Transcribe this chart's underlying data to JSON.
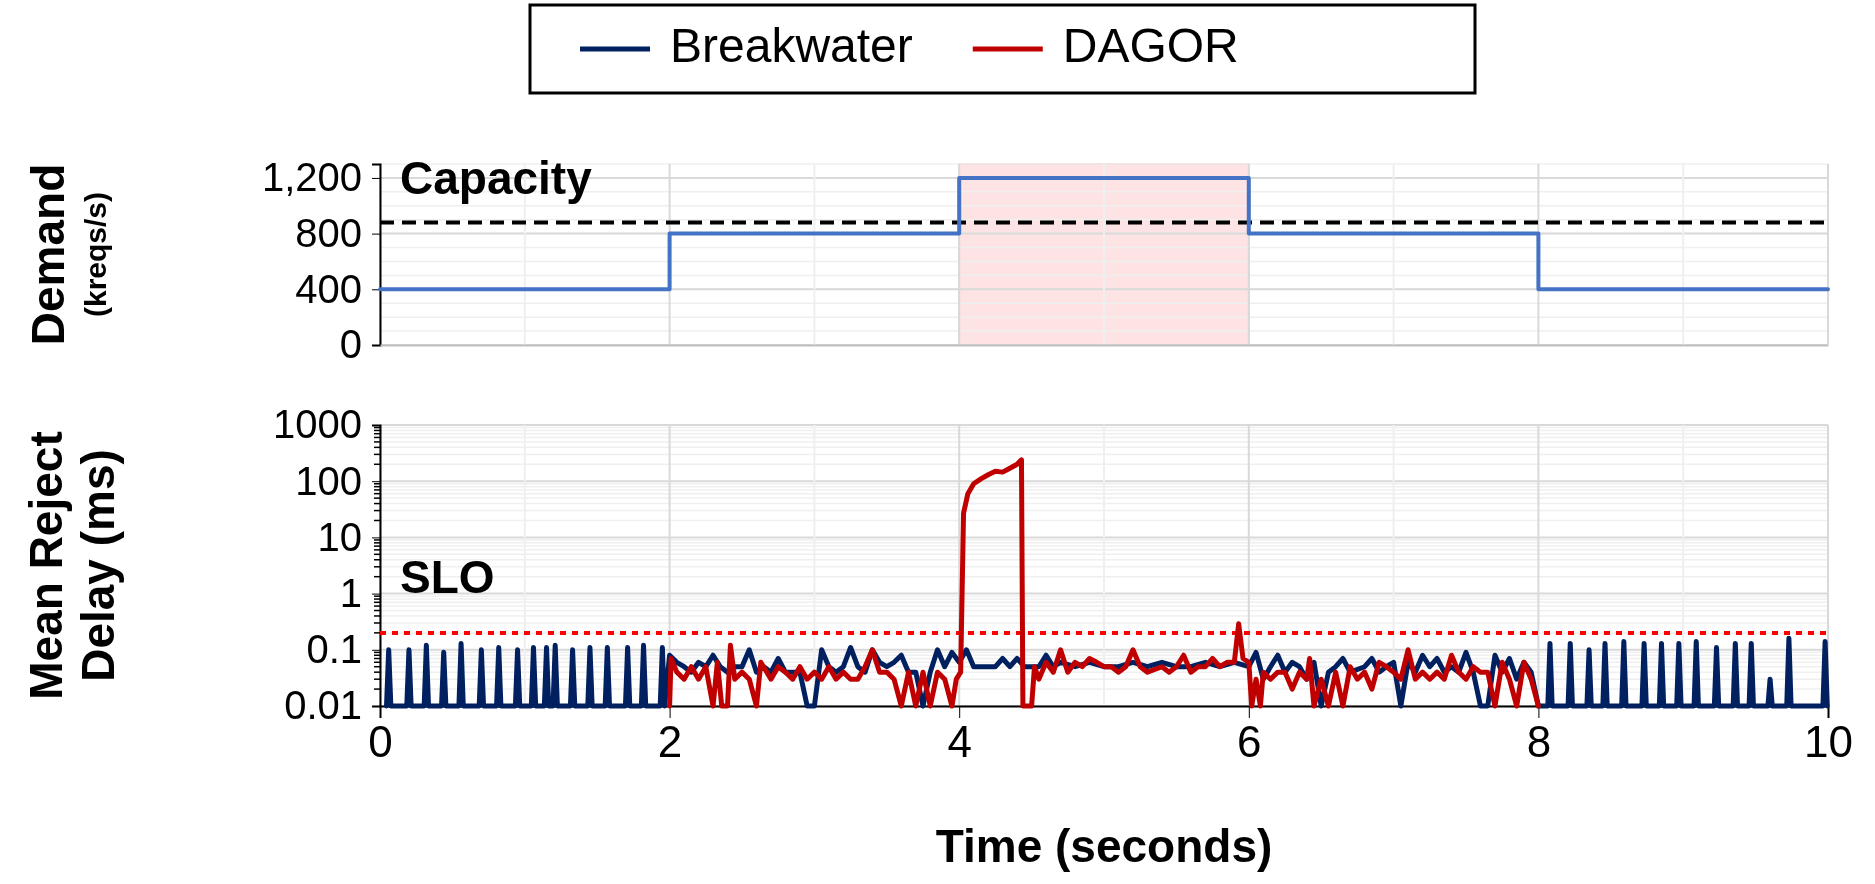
{
  "chart_data": [
    {
      "type": "step",
      "ylabel": "Demand\n(kreqs/s)",
      "xlim": [
        0,
        10
      ],
      "ylim": [
        0,
        1300
      ],
      "yticks": [
        0,
        400,
        800,
        {
          "value": 1200,
          "label": "1,200"
        }
      ],
      "xticks": [
        0,
        2,
        4,
        6,
        8,
        10
      ],
      "tick_labels": "y",
      "grid": true,
      "series": [
        {
          "color": "#4472c4",
          "x": [
            0,
            2,
            4,
            6,
            8,
            10
          ],
          "values": [
            400,
            800,
            1200,
            800,
            400,
            400
          ]
        }
      ],
      "ref_lines": [
        {
          "axis": "y",
          "value": 880,
          "label": "Capacity",
          "color": "#000000",
          "line_style": "dashed"
        }
      ],
      "bands": [
        {
          "axis": "x",
          "from": 4,
          "to": 6,
          "color": "#fde3e3"
        }
      ]
    },
    {
      "type": "line",
      "ylabel": "Mean Reject\nDelay (ms)",
      "xlabel": "Time (seconds)",
      "xlim": [
        0,
        10
      ],
      "xticks": [
        0,
        2,
        4,
        6,
        8,
        10
      ],
      "ylim": [
        0.01,
        1000
      ],
      "yticks": [
        0.01,
        0.1,
        1,
        10,
        100,
        1000
      ],
      "log": true,
      "grid": true,
      "legend": "top",
      "ref_lines": [
        {
          "axis": "y",
          "value": 0.2,
          "label": "SLO",
          "color": "#ff0000",
          "line_style": "dotted"
        }
      ],
      "series": [
        {
          "name": "Breakwater",
          "color": "#002060",
          "x": [
            0.045,
            0.06,
            0.075,
            0.185,
            0.2,
            0.215,
            0.305,
            0.32,
            0.335,
            0.425,
            0.44,
            0.455,
            0.545,
            0.56,
            0.575,
            0.685,
            0.7,
            0.715,
            0.805,
            0.82,
            0.835,
            0.935,
            0.95,
            0.965,
            1.045,
            1.06,
            1.075,
            1.135,
            1.15,
            1.165,
            1.195,
            1.21,
            1.225,
            1.315,
            1.33,
            1.345,
            1.435,
            1.45,
            1.465,
            1.555,
            1.57,
            1.585,
            1.695,
            1.71,
            1.725,
            1.805,
            1.82,
            1.835,
            1.935,
            1.95,
            1.965,
            2.0,
            2.05,
            2.1,
            2.15,
            2.2,
            2.25,
            2.3,
            2.35,
            2.4,
            2.45,
            2.5,
            2.55,
            2.6,
            2.65,
            2.7,
            2.75,
            2.8,
            2.85,
            2.9,
            2.95,
            3.0,
            3.05,
            3.1,
            3.15,
            3.2,
            3.25,
            3.3,
            3.35,
            3.4,
            3.45,
            3.5,
            3.55,
            3.6,
            3.65,
            3.7,
            3.75,
            3.8,
            3.85,
            3.9,
            3.95,
            4.0,
            4.05,
            4.1,
            4.15,
            4.25,
            4.3,
            4.35,
            4.4,
            4.45,
            4.55,
            4.6,
            4.65,
            4.7,
            4.8,
            4.9,
            5.0,
            5.1,
            5.2,
            5.3,
            5.4,
            5.5,
            5.6,
            5.7,
            5.8,
            5.9,
            6.0,
            6.05,
            6.1,
            6.15,
            6.2,
            6.25,
            6.3,
            6.35,
            6.4,
            6.45,
            6.5,
            6.55,
            6.6,
            6.65,
            6.7,
            6.8,
            6.85,
            6.9,
            6.95,
            7.0,
            7.05,
            7.1,
            7.15,
            7.2,
            7.25,
            7.3,
            7.35,
            7.4,
            7.45,
            7.5,
            7.55,
            7.6,
            7.65,
            7.7,
            7.75,
            7.8,
            7.85,
            7.9,
            7.95,
            8.0,
            8.065,
            8.08,
            8.095,
            8.205,
            8.22,
            8.235,
            8.335,
            8.35,
            8.365,
            8.445,
            8.46,
            8.475,
            8.575,
            8.59,
            8.605,
            8.715,
            8.73,
            8.745,
            8.835,
            8.85,
            8.865,
            8.955,
            8.97,
            8.985,
            9.075,
            9.09,
            9.105,
            9.215,
            9.23,
            9.245,
            9.345,
            9.36,
            9.375,
            9.455,
            9.47,
            9.485,
            9.585,
            9.6,
            9.615,
            9.715,
            9.73,
            9.745,
            9.965,
            9.98,
            9.995
          ],
          "values": [
            0.01,
            0.1,
            0.01,
            0.01,
            0.1,
            0.01,
            0.01,
            0.12,
            0.01,
            0.01,
            0.09,
            0.01,
            0.01,
            0.13,
            0.01,
            0.01,
            0.1,
            0.01,
            0.01,
            0.11,
            0.01,
            0.01,
            0.1,
            0.01,
            0.01,
            0.11,
            0.01,
            0.01,
            0.11,
            0.01,
            0.01,
            0.12,
            0.01,
            0.01,
            0.1,
            0.01,
            0.01,
            0.11,
            0.01,
            0.01,
            0.11,
            0.01,
            0.01,
            0.11,
            0.01,
            0.01,
            0.12,
            0.01,
            0.01,
            0.11,
            0.01,
            0.08,
            0.06,
            0.05,
            0.04,
            0.06,
            0.05,
            0.08,
            0.05,
            0.04,
            0.05,
            0.05,
            0.1,
            0.04,
            0.05,
            0.04,
            0.07,
            0.04,
            0.04,
            0.04,
            0.01,
            0.01,
            0.1,
            0.05,
            0.04,
            0.05,
            0.11,
            0.05,
            0.04,
            0.1,
            0.06,
            0.05,
            0.06,
            0.08,
            0.04,
            0.04,
            0.01,
            0.04,
            0.1,
            0.05,
            0.09,
            0.06,
            0.1,
            0.05,
            0.05,
            0.05,
            0.07,
            0.05,
            0.07,
            0.05,
            0.05,
            0.08,
            0.05,
            0.06,
            0.05,
            0.06,
            0.05,
            0.05,
            0.06,
            0.05,
            0.06,
            0.05,
            0.05,
            0.06,
            0.05,
            0.06,
            0.05,
            0.09,
            0.03,
            0.05,
            0.08,
            0.04,
            0.06,
            0.05,
            0.03,
            0.06,
            0.01,
            0.04,
            0.05,
            0.07,
            0.04,
            0.05,
            0.07,
            0.04,
            0.05,
            0.06,
            0.01,
            0.06,
            0.04,
            0.08,
            0.05,
            0.07,
            0.04,
            0.05,
            0.04,
            0.09,
            0.04,
            0.01,
            0.01,
            0.08,
            0.04,
            0.07,
            0.03,
            0.06,
            0.04,
            0.01,
            0.01,
            0.13,
            0.01,
            0.01,
            0.13,
            0.01,
            0.01,
            0.1,
            0.01,
            0.01,
            0.13,
            0.01,
            0.01,
            0.14,
            0.01,
            0.01,
            0.13,
            0.01,
            0.01,
            0.13,
            0.01,
            0.01,
            0.13,
            0.01,
            0.01,
            0.14,
            0.01,
            0.01,
            0.11,
            0.01,
            0.01,
            0.13,
            0.01,
            0.01,
            0.13,
            0.01,
            0.01,
            0.03,
            0.01,
            0.01,
            0.16,
            0.01,
            0.01,
            0.14,
            0.01
          ]
        },
        {
          "name": "DAGOR",
          "color": "#c00000",
          "x": [
            2.0,
            2.01,
            2.05,
            2.1,
            2.15,
            2.2,
            2.25,
            2.3,
            2.33,
            2.36,
            2.4,
            2.42,
            2.45,
            2.5,
            2.55,
            2.6,
            2.63,
            2.7,
            2.75,
            2.8,
            2.85,
            2.9,
            2.95,
            3.0,
            3.05,
            3.1,
            3.15,
            3.2,
            3.25,
            3.3,
            3.35,
            3.4,
            3.45,
            3.5,
            3.55,
            3.6,
            3.65,
            3.7,
            3.75,
            3.8,
            3.85,
            3.9,
            3.95,
            3.98,
            4.01,
            4.03,
            4.06,
            4.1,
            4.15,
            4.2,
            4.25,
            4.3,
            4.35,
            4.4,
            4.43,
            4.44,
            4.5,
            4.52,
            4.55,
            4.6,
            4.65,
            4.7,
            4.75,
            4.8,
            4.85,
            4.9,
            4.95,
            5.0,
            5.05,
            5.1,
            5.15,
            5.2,
            5.25,
            5.3,
            5.4,
            5.45,
            5.5,
            5.55,
            5.6,
            5.65,
            5.7,
            5.75,
            5.8,
            5.85,
            5.9,
            5.93,
            5.96,
            6.0,
            6.02,
            6.05,
            6.08,
            6.1,
            6.15,
            6.2,
            6.25,
            6.3,
            6.35,
            6.4,
            6.42,
            6.45,
            6.5,
            6.55,
            6.6,
            6.65,
            6.7,
            6.75,
            6.8,
            6.85,
            6.9,
            6.95,
            7.0,
            7.05,
            7.1,
            7.15,
            7.2,
            7.25,
            7.3,
            7.35,
            7.4,
            7.45,
            7.5,
            7.55,
            7.6,
            7.65,
            7.7,
            7.75,
            7.8,
            7.85,
            7.9,
            7.95,
            8.0
          ],
          "values": [
            0.01,
            0.07,
            0.04,
            0.03,
            0.05,
            0.03,
            0.05,
            0.01,
            0.06,
            0.01,
            0.01,
            0.12,
            0.03,
            0.04,
            0.03,
            0.01,
            0.06,
            0.03,
            0.05,
            0.04,
            0.03,
            0.05,
            0.03,
            0.04,
            0.03,
            0.05,
            0.03,
            0.04,
            0.03,
            0.03,
            0.05,
            0.1,
            0.04,
            0.04,
            0.03,
            0.01,
            0.04,
            0.01,
            0.04,
            0.01,
            0.04,
            0.03,
            0.01,
            0.03,
            0.04,
            27,
            60,
            90,
            110,
            130,
            150,
            145,
            170,
            200,
            240,
            0.01,
            0.01,
            0.05,
            0.03,
            0.06,
            0.04,
            0.1,
            0.04,
            0.06,
            0.05,
            0.07,
            0.06,
            0.05,
            0.05,
            0.04,
            0.05,
            0.1,
            0.05,
            0.04,
            0.05,
            0.04,
            0.05,
            0.08,
            0.04,
            0.05,
            0.05,
            0.07,
            0.05,
            0.06,
            0.06,
            0.29,
            0.07,
            0.06,
            0.01,
            0.03,
            0.01,
            0.04,
            0.03,
            0.04,
            0.04,
            0.02,
            0.04,
            0.03,
            0.07,
            0.01,
            0.03,
            0.01,
            0.04,
            0.01,
            0.05,
            0.03,
            0.04,
            0.02,
            0.06,
            0.05,
            0.04,
            0.03,
            0.1,
            0.03,
            0.04,
            0.03,
            0.04,
            0.03,
            0.08,
            0.04,
            0.03,
            0.05,
            0.04,
            0.04,
            0.01,
            0.06,
            0.03,
            0.01,
            0.06,
            0.03,
            0.01
          ]
        }
      ]
    }
  ]
}
